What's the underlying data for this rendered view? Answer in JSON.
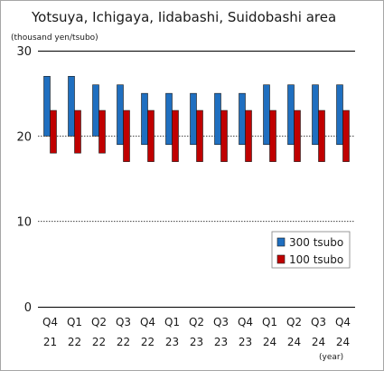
{
  "chart_data": {
    "type": "bar",
    "title": "Yotsuya, Ichigaya, Iidabashi, Suidobashi area",
    "ylabel": "(thousand yen/tsubo)",
    "xlabel": "(year)",
    "ylim": [
      0,
      30
    ],
    "yticks": [
      "0",
      "10",
      "20",
      "30"
    ],
    "categories": [
      [
        "Q4",
        "21"
      ],
      [
        "Q1",
        "22"
      ],
      [
        "Q2",
        "22"
      ],
      [
        "Q3",
        "22"
      ],
      [
        "Q4",
        "22"
      ],
      [
        "Q1",
        "23"
      ],
      [
        "Q2",
        "23"
      ],
      [
        "Q3",
        "23"
      ],
      [
        "Q4",
        "23"
      ],
      [
        "Q1",
        "24"
      ],
      [
        "Q2",
        "24"
      ],
      [
        "Q3",
        "24"
      ],
      [
        "Q4",
        "24"
      ]
    ],
    "series": [
      {
        "name": "300 tsubo",
        "color": "#1f6fc0",
        "low": [
          20,
          20,
          20,
          19,
          19,
          19,
          19,
          19,
          19,
          19,
          19,
          19,
          19
        ],
        "high": [
          27,
          27,
          26,
          26,
          25,
          25,
          25,
          25,
          25,
          26,
          26,
          26,
          26
        ]
      },
      {
        "name": "100 tsubo",
        "color": "#c00000",
        "low": [
          18,
          18,
          18,
          17,
          17,
          17,
          17,
          17,
          17,
          17,
          17,
          17,
          17
        ],
        "high": [
          23,
          23,
          23,
          23,
          23,
          23,
          23,
          23,
          23,
          23,
          23,
          23,
          23
        ]
      }
    ],
    "reference_lines": [
      10,
      20
    ],
    "legend_position": "bottom-right"
  }
}
